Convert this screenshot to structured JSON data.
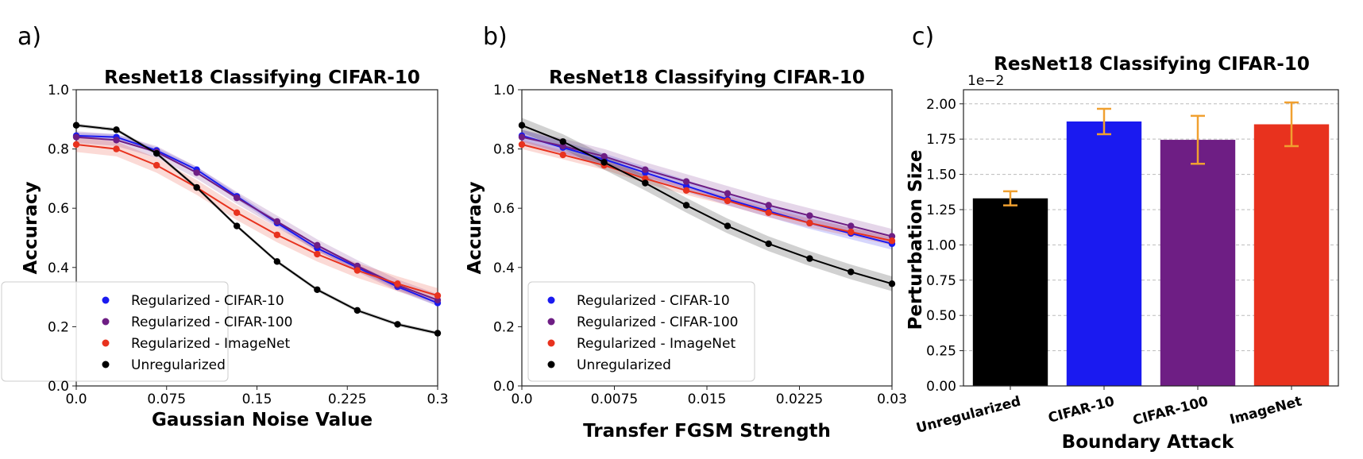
{
  "colors": {
    "cifar10": "#1a1af0",
    "cifar100": "#6e1e84",
    "imagenet": "#e8321e",
    "unreg": "#000000",
    "errorbar": "#f0a030"
  },
  "panel_labels": [
    "a)",
    "b)",
    "c)"
  ],
  "chart_data": [
    {
      "type": "line",
      "title": "ResNet18 Classifying CIFAR-10",
      "xlabel": "Gaussian Noise Value",
      "ylabel": "Accuracy",
      "xlim": [
        0,
        0.3
      ],
      "ylim": [
        0,
        1.0
      ],
      "xticks": [
        0,
        0.075,
        0.15,
        0.225,
        0.3
      ],
      "xtick_labels": [
        "0.0",
        "0.075",
        "0.15",
        "0.225",
        "0.3"
      ],
      "yticks": [
        0,
        0.2,
        0.4,
        0.6,
        0.8,
        1.0
      ],
      "ytick_labels": [
        "0.0",
        "0.2",
        "0.4",
        "0.6",
        "0.8",
        "1.0"
      ],
      "legend_position": "bottom-left",
      "x": [
        0,
        0.0333,
        0.0667,
        0.1,
        0.1333,
        0.1667,
        0.2,
        0.2333,
        0.2667,
        0.3
      ],
      "series": [
        {
          "name": "Regularized - CIFAR-10",
          "key": "cifar10",
          "values": [
            0.845,
            0.84,
            0.795,
            0.73,
            0.64,
            0.55,
            0.465,
            0.4,
            0.335,
            0.28
          ],
          "band": 0.01
        },
        {
          "name": "Regularized - CIFAR-100",
          "key": "cifar100",
          "values": [
            0.84,
            0.83,
            0.79,
            0.72,
            0.635,
            0.555,
            0.475,
            0.405,
            0.34,
            0.29
          ],
          "band": 0.02
        },
        {
          "name": "Regularized - ImageNet",
          "key": "imagenet",
          "values": [
            0.815,
            0.8,
            0.745,
            0.67,
            0.585,
            0.51,
            0.445,
            0.39,
            0.345,
            0.305
          ],
          "band": 0.025
        },
        {
          "name": "Unregularized",
          "key": "unreg",
          "values": [
            0.88,
            0.865,
            0.785,
            0.67,
            0.54,
            0.42,
            0.325,
            0.255,
            0.208,
            0.178
          ],
          "band": 0.006
        }
      ]
    },
    {
      "type": "line",
      "title": "ResNet18 Classifying CIFAR-10",
      "xlabel": "Transfer FGSM Strength",
      "ylabel": "Accuracy",
      "xlim": [
        0,
        0.03
      ],
      "ylim": [
        0,
        1.0
      ],
      "xticks": [
        0,
        0.0075,
        0.015,
        0.0225,
        0.03
      ],
      "xtick_labels": [
        "0.0",
        "0.0075",
        "0.015",
        "0.0225",
        "0.03"
      ],
      "yticks": [
        0,
        0.2,
        0.4,
        0.6,
        0.8,
        1.0
      ],
      "ytick_labels": [
        "0.0",
        "0.2",
        "0.4",
        "0.6",
        "0.8",
        "1.0"
      ],
      "legend_position": "bottom-left",
      "x": [
        0,
        0.00333,
        0.00667,
        0.01,
        0.01333,
        0.01667,
        0.02,
        0.02333,
        0.02667,
        0.03
      ],
      "series": [
        {
          "name": "Regularized - CIFAR-10",
          "key": "cifar10",
          "values": [
            0.845,
            0.805,
            0.765,
            0.72,
            0.675,
            0.63,
            0.59,
            0.55,
            0.515,
            0.48
          ],
          "band": 0.02
        },
        {
          "name": "Regularized - CIFAR-100",
          "key": "cifar100",
          "values": [
            0.84,
            0.81,
            0.775,
            0.73,
            0.69,
            0.65,
            0.61,
            0.575,
            0.54,
            0.505
          ],
          "band": 0.025
        },
        {
          "name": "Regularized - ImageNet",
          "key": "imagenet",
          "values": [
            0.815,
            0.78,
            0.745,
            0.7,
            0.66,
            0.625,
            0.585,
            0.55,
            0.52,
            0.49
          ],
          "band": 0.015
        },
        {
          "name": "Unregularized",
          "key": "unreg",
          "values": [
            0.88,
            0.825,
            0.755,
            0.685,
            0.61,
            0.54,
            0.48,
            0.43,
            0.385,
            0.345
          ],
          "band": 0.025
        }
      ]
    },
    {
      "type": "bar",
      "title": "ResNet18 Classifying CIFAR-10",
      "xlabel": "Boundary Attack",
      "ylabel": "Perturbation Size",
      "offset_text": "1e−2",
      "ylim": [
        0,
        2.1
      ],
      "yticks": [
        0,
        0.25,
        0.5,
        0.75,
        1.0,
        1.25,
        1.5,
        1.75,
        2.0
      ],
      "ytick_labels": [
        "0.00",
        "0.25",
        "0.50",
        "0.75",
        "1.00",
        "1.25",
        "1.50",
        "1.75",
        "2.00"
      ],
      "grid": true,
      "categories": [
        "Unregularized",
        "CIFAR-10",
        "CIFAR-100",
        "ImageNet"
      ],
      "keys": [
        "unreg",
        "cifar10",
        "cifar100",
        "imagenet"
      ],
      "values": [
        1.33,
        1.875,
        1.745,
        1.855
      ],
      "errors": [
        0.05,
        0.09,
        0.17,
        0.155
      ]
    }
  ]
}
